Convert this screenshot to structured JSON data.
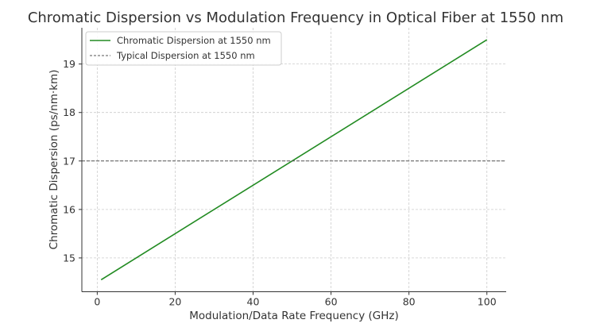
{
  "chart_data": {
    "type": "line",
    "title": "Chromatic Dispersion vs Modulation Frequency in Optical Fiber at 1550 nm",
    "xlabel": "Modulation/Data Rate Frequency (GHz)",
    "ylabel": "Chromatic Dispersion (ps/nm·km)",
    "xlim": [
      -3.95,
      104.95
    ],
    "ylim": [
      14.3025,
      19.7475
    ],
    "xticks": [
      0,
      20,
      40,
      60,
      80,
      100
    ],
    "yticks": [
      15,
      16,
      17,
      18,
      19
    ],
    "grid": true,
    "legend_position": "top-left",
    "series": [
      {
        "name": "Chromatic Dispersion at 1550 nm",
        "color": "#228B22",
        "style": "solid",
        "x": [
          1,
          100
        ],
        "y": [
          14.55,
          19.5
        ]
      },
      {
        "name": "Typical Dispersion at 1550 nm",
        "color": "#555555",
        "style": "dashed",
        "hline": 17
      }
    ]
  }
}
